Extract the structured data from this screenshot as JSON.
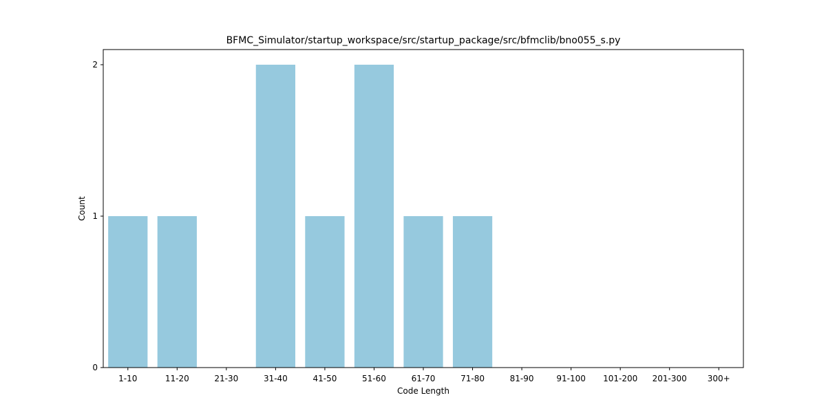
{
  "chart_data": {
    "type": "bar",
    "title": "BFMC_Simulator/startup_workspace/src/startup_package/src/bfmclib/bno055_s.py",
    "xlabel": "Code Length",
    "ylabel": "Count",
    "categories": [
      "1-10",
      "11-20",
      "21-30",
      "31-40",
      "41-50",
      "51-60",
      "61-70",
      "71-80",
      "81-90",
      "91-100",
      "101-200",
      "201-300",
      "300+"
    ],
    "values": [
      1,
      1,
      0,
      2,
      1,
      2,
      1,
      1,
      0,
      0,
      0,
      0,
      0
    ],
    "ylim": [
      0,
      2.1
    ],
    "yticks": [
      0,
      1,
      2
    ],
    "grid": false,
    "bar_color": "#96c9de"
  }
}
